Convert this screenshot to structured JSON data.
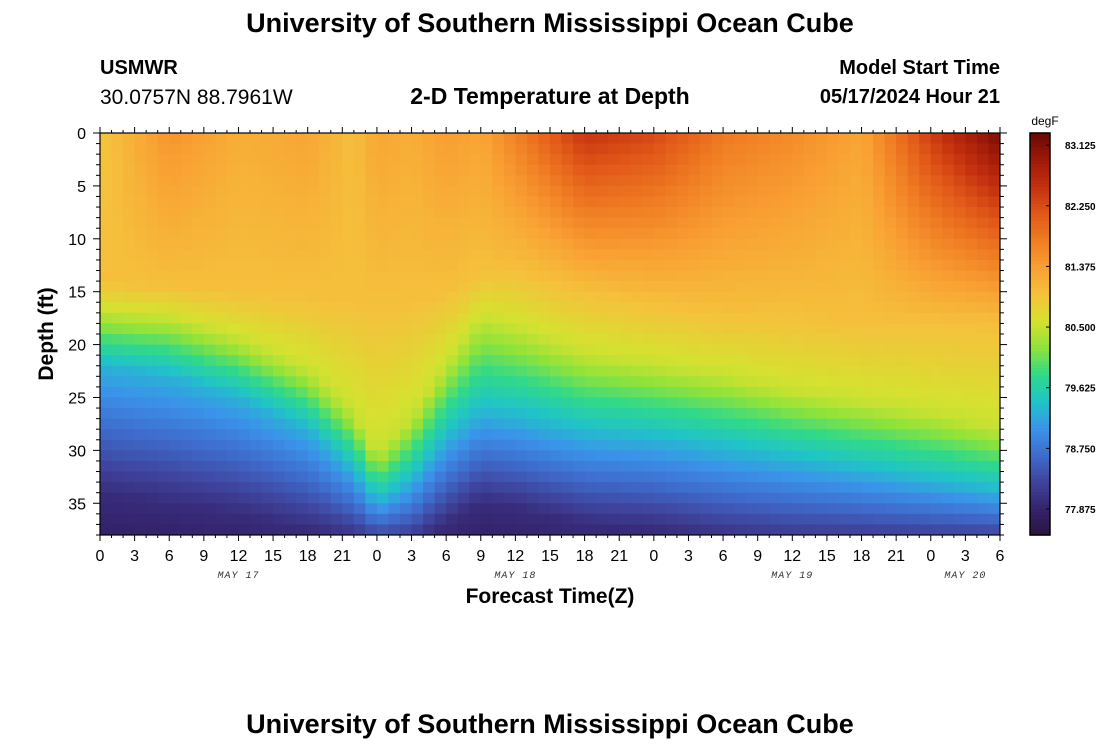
{
  "header": {
    "title": "University of Southern Mississippi Ocean Cube",
    "station_id": "USMWR",
    "station_coords": "30.0757N  88.7961W",
    "model_start_label": "Model Start Time",
    "model_start_value": "05/17/2024 Hour 21"
  },
  "footer": {
    "title": "University of Southern Mississippi Ocean Cube"
  },
  "chart_data": {
    "type": "heatmap",
    "title": "2-D Temperature at Depth",
    "xlabel": "Forecast Time(Z)",
    "ylabel": "Depth (ft)",
    "x_units": "hours since 2024-05-17 00Z",
    "xlim": [
      0,
      78
    ],
    "ylim": [
      0,
      38
    ],
    "y_reversed": true,
    "x_ticks": [
      {
        "x": 0,
        "label": "0"
      },
      {
        "x": 3,
        "label": "3"
      },
      {
        "x": 6,
        "label": "6"
      },
      {
        "x": 9,
        "label": "9"
      },
      {
        "x": 12,
        "label": "12"
      },
      {
        "x": 15,
        "label": "15"
      },
      {
        "x": 18,
        "label": "18"
      },
      {
        "x": 21,
        "label": "21"
      },
      {
        "x": 24,
        "label": "0"
      },
      {
        "x": 27,
        "label": "3"
      },
      {
        "x": 30,
        "label": "6"
      },
      {
        "x": 33,
        "label": "9"
      },
      {
        "x": 36,
        "label": "12"
      },
      {
        "x": 39,
        "label": "15"
      },
      {
        "x": 42,
        "label": "18"
      },
      {
        "x": 45,
        "label": "21"
      },
      {
        "x": 48,
        "label": "0"
      },
      {
        "x": 51,
        "label": "3"
      },
      {
        "x": 54,
        "label": "6"
      },
      {
        "x": 57,
        "label": "9"
      },
      {
        "x": 60,
        "label": "12"
      },
      {
        "x": 63,
        "label": "15"
      },
      {
        "x": 66,
        "label": "18"
      },
      {
        "x": 69,
        "label": "21"
      },
      {
        "x": 72,
        "label": "0"
      },
      {
        "x": 75,
        "label": "3"
      },
      {
        "x": 78,
        "label": "6"
      }
    ],
    "date_labels": [
      {
        "x": 12,
        "label": "MAY 17"
      },
      {
        "x": 36,
        "label": "MAY 18"
      },
      {
        "x": 60,
        "label": "MAY 19"
      },
      {
        "x": 75,
        "label": "MAY 20"
      }
    ],
    "y_ticks": [
      0,
      5,
      10,
      15,
      20,
      25,
      30,
      35
    ],
    "colorbar": {
      "units": "degF",
      "min": 77.5,
      "max": 83.3,
      "tick_values": [
        77.875,
        78.75,
        79.625,
        80.5,
        81.375,
        82.25,
        83.125
      ],
      "tick_labels": [
        "77.875",
        "78.750",
        "79.625",
        "80.500",
        "81.375",
        "82.250",
        "83.125"
      ],
      "colors": [
        "#2b1440",
        "#35236d",
        "#3f449d",
        "#3f6ccd",
        "#3b93ea",
        "#20c4c8",
        "#30d98a",
        "#8ee33a",
        "#d6e130",
        "#f5c13c",
        "#f9a033",
        "#f07d23",
        "#e15818",
        "#c4300f",
        "#9e1a08",
        "#6a0904"
      ]
    },
    "isotherm_depths": {
      "hours": [
        0,
        6,
        12,
        18,
        22,
        24,
        27,
        30,
        33,
        36,
        42,
        48,
        54,
        60,
        66,
        72,
        78
      ],
      "t_81": [
        14,
        14.5,
        15,
        15.5,
        16,
        16,
        16,
        15,
        13,
        13,
        15,
        16,
        17,
        17,
        18,
        18,
        18
      ],
      "t_80p5": [
        17,
        17.5,
        19.5,
        22.5,
        26.5,
        30.5,
        27,
        22,
        17.5,
        18.5,
        21,
        22,
        23,
        24.5,
        25.5,
        26.5,
        28
      ],
      "t_79p3": [
        22,
        23,
        25,
        28,
        32,
        35,
        33,
        29,
        26.5,
        27,
        28.5,
        29,
        30,
        31,
        32,
        33,
        34
      ],
      "t_78": [
        34,
        35,
        36,
        37.5,
        38.5,
        39,
        39,
        37,
        35,
        35.5,
        37,
        37.5,
        38.5,
        39,
        39,
        39,
        39
      ],
      "surface_temp": [
        80.9,
        81.5,
        81.2,
        81.3,
        81.0,
        81.3,
        81.2,
        81.4,
        81.3,
        81.7,
        82.5,
        82.3,
        81.8,
        81.6,
        81.3,
        82.4,
        83.2
      ]
    }
  }
}
